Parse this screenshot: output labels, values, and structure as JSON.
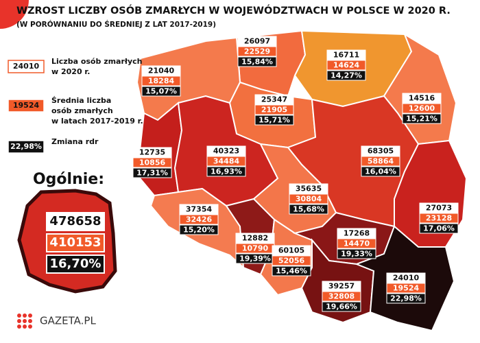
{
  "title": "WZROST LICZBY OSÓB ZMARŁYCH W WOJEWÓDZTWACH W POLSCE W 2020 R.",
  "subtitle": "(W PORÓWNANIU DO ŚREDNIEJ Z LAT 2017-2019)",
  "legend": [
    {
      "sample": "24010",
      "text": [
        "Liczba osób zmarłych",
        "w 2020 r."
      ]
    },
    {
      "sample": "19524",
      "text": [
        "Średnia liczba",
        "osób zmarłych",
        "w latach 2017-2019 r."
      ]
    },
    {
      "sample": "22,98%",
      "text": [
        "Zmiana rdr"
      ]
    }
  ],
  "overall": {
    "label": "Ogólnie:",
    "deaths_2020": "478658",
    "average": "410153",
    "change": "16,70%"
  },
  "regions": [
    {
      "deaths_2020": "26097",
      "average": "22529",
      "change": "15,84%",
      "color": "#f26b3e"
    },
    {
      "deaths_2020": "16711",
      "average": "14624",
      "change": "14,27%",
      "color": "#f0962f"
    },
    {
      "deaths_2020": "21040",
      "average": "18284",
      "change": "15,07%",
      "color": "#f47a4c"
    },
    {
      "deaths_2020": "14516",
      "average": "12600",
      "change": "15,21%",
      "color": "#f47a4c"
    },
    {
      "deaths_2020": "25347",
      "average": "21905",
      "change": "15,71%",
      "color": "#f2703f"
    },
    {
      "deaths_2020": "12735",
      "average": "10856",
      "change": "17,31%",
      "color": "#c41f1c"
    },
    {
      "deaths_2020": "40323",
      "average": "34484",
      "change": "16,93%",
      "color": "#cc2520"
    },
    {
      "deaths_2020": "68305",
      "average": "58864",
      "change": "16,04%",
      "color": "#d93724"
    },
    {
      "deaths_2020": "35635",
      "average": "30804",
      "change": "15,68%",
      "color": "#f3764a"
    },
    {
      "deaths_2020": "37354",
      "average": "32426",
      "change": "15,20%",
      "color": "#f47b50"
    },
    {
      "deaths_2020": "27073",
      "average": "23128",
      "change": "17,06%",
      "color": "#c9221e"
    },
    {
      "deaths_2020": "12882",
      "average": "10790",
      "change": "19,39%",
      "color": "#8e1a18"
    },
    {
      "deaths_2020": "60105",
      "average": "52056",
      "change": "15,46%",
      "color": "#f3784c"
    },
    {
      "deaths_2020": "17268",
      "average": "14470",
      "change": "19,33%",
      "color": "#8a1717"
    },
    {
      "deaths_2020": "39257",
      "average": "32808",
      "change": "19,66%",
      "color": "#771212"
    },
    {
      "deaths_2020": "24010",
      "average": "19524",
      "change": "22,98%",
      "color": "#1c0a0a"
    }
  ],
  "logo": "GAZETA.PL"
}
